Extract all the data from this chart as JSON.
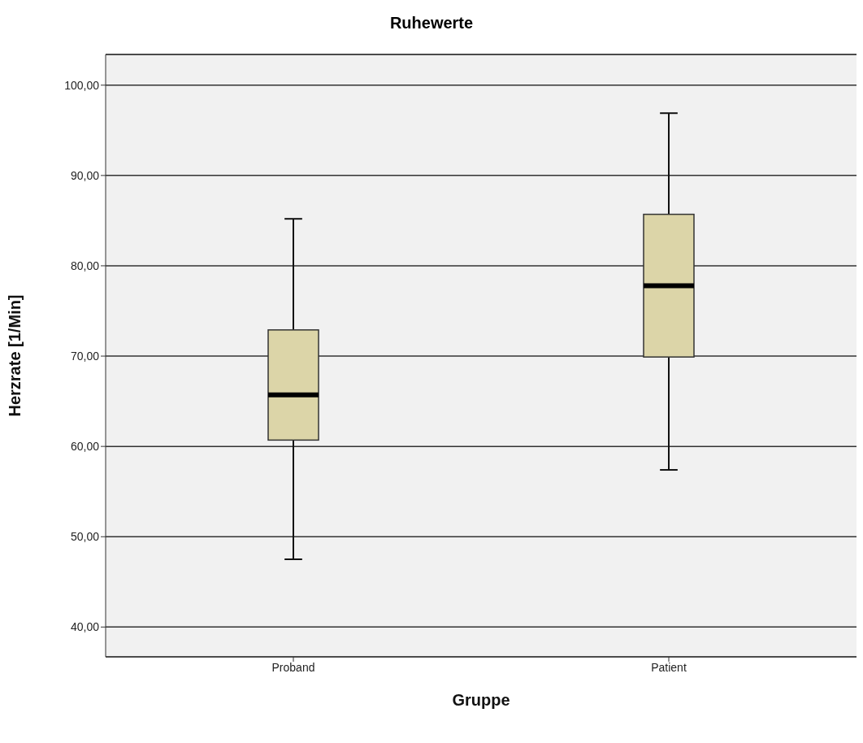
{
  "chart_data": {
    "type": "box",
    "title": "Ruhewerte",
    "xlabel": "Gruppe",
    "ylabel": "Herzrate [1/Min]",
    "categories": [
      "Proband",
      "Patient"
    ],
    "boxes": [
      {
        "low": 47.5,
        "q1": 60.7,
        "median": 65.7,
        "q3": 72.9,
        "high": 85.2
      },
      {
        "low": 57.4,
        "q1": 69.9,
        "median": 77.8,
        "q3": 85.7,
        "high": 96.9
      }
    ],
    "color": "#dcd5a8",
    "ylim": [
      36.7,
      103.4
    ],
    "yticks": [
      {
        "value": 40,
        "label": "40,00"
      },
      {
        "value": 50,
        "label": "50,00"
      },
      {
        "value": 60,
        "label": "60,00"
      },
      {
        "value": 70,
        "label": "70,00"
      },
      {
        "value": 80,
        "label": "80,00"
      },
      {
        "value": 90,
        "label": "90,00"
      },
      {
        "value": 100,
        "label": "100,00"
      }
    ],
    "grid": "y"
  }
}
